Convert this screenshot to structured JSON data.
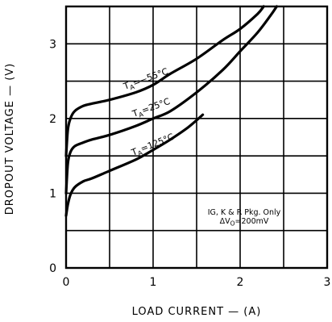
{
  "chart_data": {
    "type": "line",
    "xlabel": "LOAD CURRENT — (A)",
    "ylabel": "DROPOUT VOLTAGE — (V)",
    "xlim": [
      0,
      3
    ],
    "ylim": [
      0,
      3.5
    ],
    "x_ticks": [
      "0",
      "1",
      "2",
      "3"
    ],
    "y_ticks": [
      "0",
      "1",
      "2",
      "3"
    ],
    "grid": true,
    "series": [
      {
        "name": "T_A=−55°C",
        "label_parts": {
          "base": "T",
          "sub": "A",
          "rest": "=−55°C"
        },
        "x": [
          0,
          0.02,
          0.05,
          0.1,
          0.2,
          0.3,
          0.5,
          0.8,
          1.0,
          1.2,
          1.5,
          1.8,
          2.0,
          2.2,
          2.27
        ],
        "y": [
          1.5,
          1.85,
          2.0,
          2.1,
          2.17,
          2.2,
          2.25,
          2.35,
          2.45,
          2.6,
          2.8,
          3.05,
          3.2,
          3.4,
          3.5
        ]
      },
      {
        "name": "T_A=25°C",
        "label_parts": {
          "base": "T",
          "sub": "A",
          "rest": "=25°C"
        },
        "x": [
          0,
          0.02,
          0.05,
          0.1,
          0.2,
          0.3,
          0.5,
          0.8,
          1.0,
          1.2,
          1.5,
          1.8,
          2.0,
          2.2,
          2.35,
          2.42
        ],
        "y": [
          1.0,
          1.4,
          1.55,
          1.63,
          1.68,
          1.72,
          1.78,
          1.9,
          2.0,
          2.1,
          2.35,
          2.65,
          2.9,
          3.15,
          3.38,
          3.5
        ]
      },
      {
        "name": "T_A=125°C",
        "label_parts": {
          "base": "T",
          "sub": "A",
          "rest": "=125°C"
        },
        "x": [
          0,
          0.02,
          0.05,
          0.1,
          0.2,
          0.3,
          0.5,
          0.8,
          1.0,
          1.2,
          1.4,
          1.57
        ],
        "y": [
          0.7,
          0.85,
          0.98,
          1.08,
          1.16,
          1.2,
          1.3,
          1.45,
          1.58,
          1.72,
          1.88,
          2.05
        ]
      }
    ],
    "annotation": {
      "line1": "IG, K & R Pkg. Only",
      "line2_prefix": "ΔV",
      "line2_sub": "O",
      "line2_rest": "=200mV"
    }
  }
}
